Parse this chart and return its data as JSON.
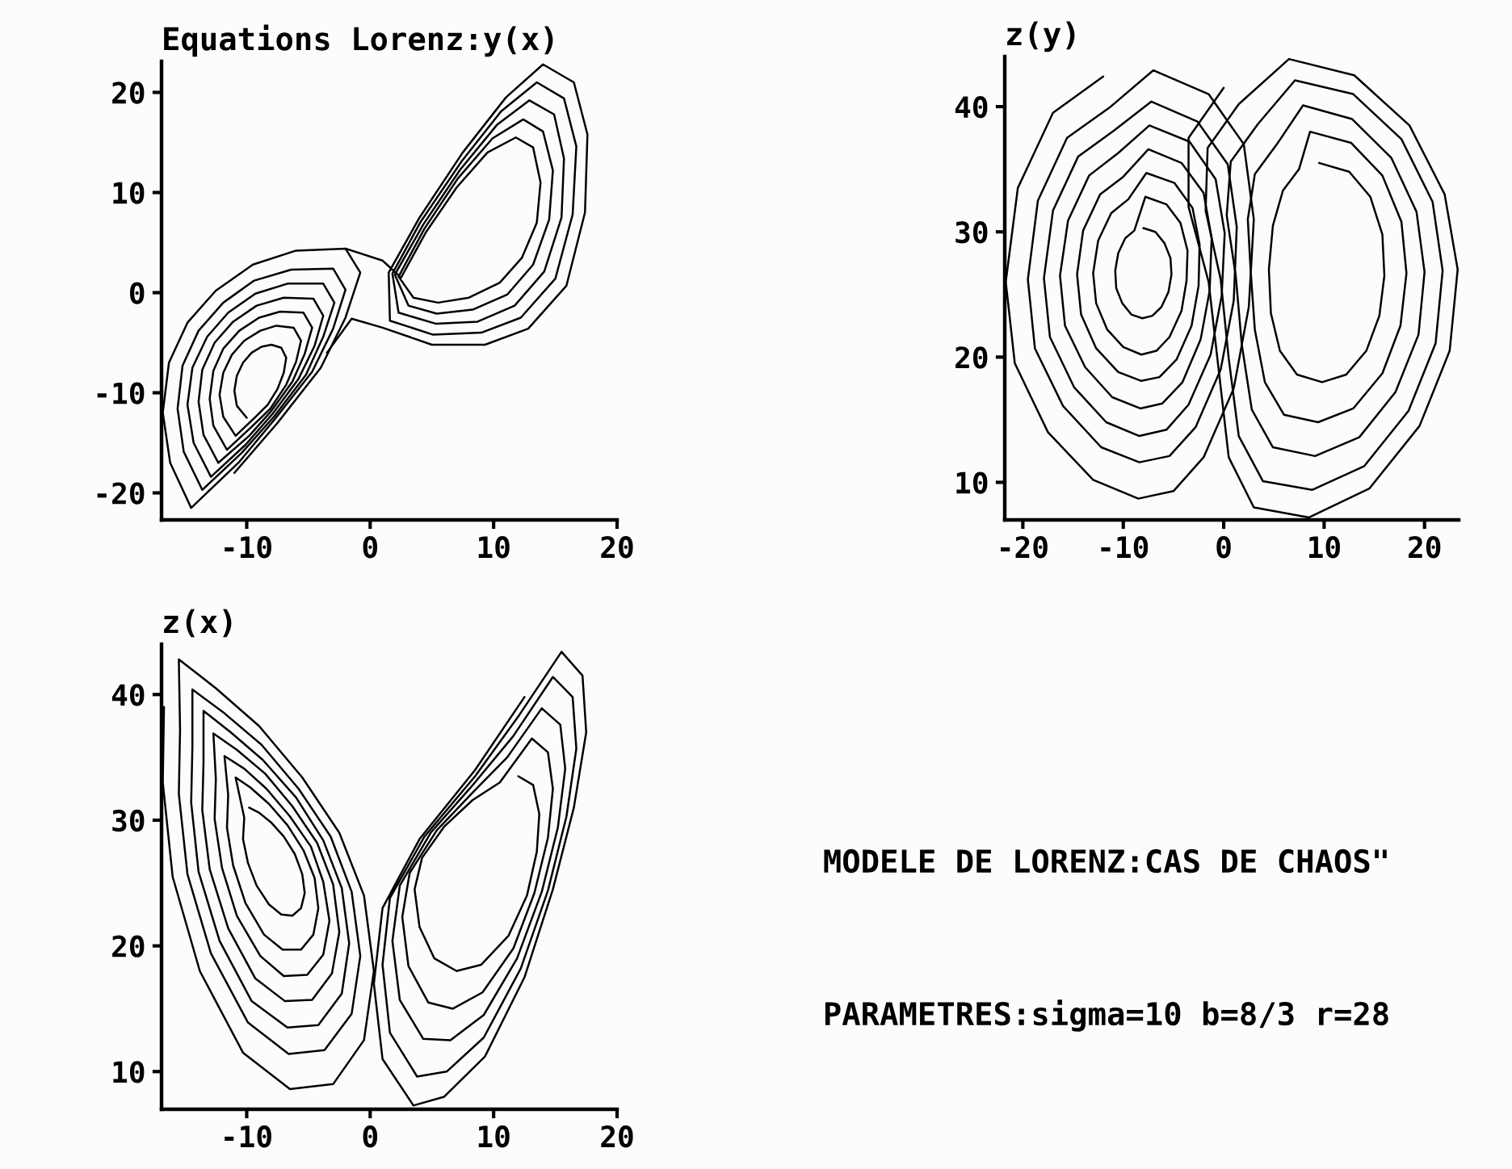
{
  "chart_data": [
    {
      "type": "line",
      "title": "Equations Lorenz:y(x)",
      "xlim": [
        -16.9,
        20
      ],
      "ylim": [
        -22.7,
        23.1
      ],
      "xticks": [
        -10,
        0,
        10,
        20
      ],
      "yticks": [
        -20,
        -10,
        0,
        10,
        20
      ],
      "series": [
        {
          "color": "#000000",
          "x": [
            -10.0,
            -10.8,
            -11.0,
            -10.8,
            -10.3,
            -9.6,
            -8.8,
            -8.0,
            -7.2,
            -6.8,
            -7.0,
            -7.5,
            -8.3,
            -9.2,
            -10.9,
            -11.9,
            -12.2,
            -11.9,
            -11.2,
            -10.2,
            -8.9,
            -7.6,
            -6.2,
            -5.6,
            -6.0,
            -6.8,
            -8.1,
            -9.6,
            -11.6,
            -12.7,
            -13.0,
            -12.7,
            -11.9,
            -10.6,
            -9.0,
            -7.3,
            -5.4,
            -4.7,
            -5.3,
            -6.3,
            -8.0,
            -9.8,
            -12.3,
            -13.5,
            -13.9,
            -13.6,
            -12.6,
            -11.1,
            -9.2,
            -7.0,
            -4.6,
            -3.8,
            -4.5,
            -5.8,
            -7.9,
            -10.1,
            -12.9,
            -14.3,
            -14.8,
            -14.4,
            -13.2,
            -11.5,
            -9.3,
            -6.7,
            -3.8,
            -2.9,
            -3.8,
            -5.2,
            -7.8,
            -10.4,
            -13.6,
            -15.1,
            -15.6,
            -15.2,
            -13.9,
            -11.9,
            -9.4,
            -6.4,
            -3.0,
            -2.0,
            -3.0,
            -4.7,
            -7.7,
            -10.6,
            -14.5,
            -16.2,
            -16.8,
            -16.3,
            -14.8,
            -12.5,
            -9.5,
            -6.0,
            -2.0,
            -0.8,
            -2.0,
            -4.0,
            -7.5,
            -11.0
          ],
          "values": [
            -12.5,
            -11.3,
            -9.8,
            -8.3,
            -7.0,
            -6.0,
            -5.4,
            -5.2,
            -5.5,
            -6.5,
            -8.0,
            -9.6,
            -11.2,
            -12.3,
            -14.3,
            -12.4,
            -10.2,
            -8.0,
            -6.2,
            -4.8,
            -3.8,
            -3.3,
            -3.5,
            -4.8,
            -6.9,
            -9.2,
            -11.6,
            -13.4,
            -15.7,
            -13.3,
            -10.6,
            -7.8,
            -5.6,
            -3.8,
            -2.5,
            -1.9,
            -2.0,
            -3.5,
            -6.1,
            -8.9,
            -11.8,
            -14.3,
            -17.0,
            -14.2,
            -10.9,
            -7.7,
            -5.0,
            -2.9,
            -1.3,
            -0.5,
            -0.6,
            -2.3,
            -5.3,
            -8.6,
            -12.1,
            -15.2,
            -18.4,
            -15.0,
            -11.2,
            -7.5,
            -4.4,
            -2.0,
            -0.1,
            0.9,
            0.9,
            -1.0,
            -4.4,
            -8.2,
            -12.4,
            -16.0,
            -19.7,
            -15.9,
            -11.6,
            -7.3,
            -3.8,
            -1.0,
            1.2,
            2.3,
            2.4,
            0.3,
            -3.6,
            -7.9,
            -12.6,
            -16.9,
            -21.5,
            -17.0,
            -12.0,
            -7.0,
            -3.0,
            0.2,
            2.8,
            4.2,
            4.4,
            2.0,
            -2.5,
            -7.5,
            -13.0,
            -18.0
          ]
        },
        {
          "color": "#000000",
          "x": [
            -2.0,
            1.0,
            2.5,
            4.5,
            7.0,
            9.5,
            11.8,
            13.2,
            13.8,
            13.5,
            12.3,
            10.5,
            8.0,
            5.5,
            3.5,
            2.3,
            4.4,
            7.1,
            9.9,
            12.4,
            14.0,
            14.8,
            14.5,
            13.2,
            11.1,
            8.3,
            5.4,
            3.1,
            2.0,
            4.3,
            7.3,
            10.3,
            12.9,
            14.9,
            15.7,
            15.5,
            14.1,
            11.7,
            8.7,
            5.3,
            2.3,
            1.8,
            4.1,
            7.4,
            10.6,
            13.5,
            15.7,
            16.7,
            16.4,
            15.0,
            12.2,
            9.0,
            5.1,
            1.6,
            1.5,
            4.0,
            7.5,
            11.0,
            14.0,
            16.5,
            17.6,
            17.4,
            15.9,
            12.8,
            9.3,
            5.0,
            1.0,
            -1.5,
            -3.5
          ],
          "values": [
            4.4,
            3.2,
            1.5,
            6.0,
            10.5,
            14.0,
            15.5,
            14.5,
            11.0,
            7.0,
            3.5,
            1.0,
            -0.5,
            -1.0,
            -0.5,
            1.6,
            6.4,
            11.4,
            15.4,
            17.3,
            16.1,
            12.2,
            7.3,
            2.8,
            -0.2,
            -1.7,
            -2.1,
            -1.3,
            1.8,
            6.8,
            12.3,
            16.8,
            19.2,
            17.8,
            13.4,
            7.5,
            2.1,
            -1.3,
            -2.9,
            -3.1,
            -2.0,
            1.9,
            7.1,
            13.1,
            18.1,
            21.0,
            19.4,
            14.6,
            7.8,
            1.4,
            -2.5,
            -4.0,
            -4.2,
            -2.8,
            2.0,
            7.5,
            14.0,
            19.5,
            22.8,
            21.0,
            15.8,
            8.0,
            0.7,
            -3.6,
            -5.2,
            -5.2,
            -3.5,
            -2.6,
            -6.0
          ]
        }
      ]
    },
    {
      "type": "line",
      "title": "z(y)",
      "xlim": [
        -21.8,
        23.4
      ],
      "ylim": [
        7.0,
        44.0
      ],
      "xticks": [
        -20,
        -10,
        0,
        10,
        20
      ],
      "yticks": [
        10,
        20,
        30,
        40
      ],
      "series": [
        {
          "color": "#000000",
          "x": [
            -8.0,
            -6.8,
            -5.9,
            -5.3,
            -5.2,
            -5.5,
            -6.2,
            -7.1,
            -8.1,
            -9.2,
            -10.1,
            -10.7,
            -10.8,
            -10.5,
            -9.8,
            -8.9,
            -7.8,
            -5.7,
            -4.3,
            -3.6,
            -3.7,
            -4.2,
            -5.4,
            -6.7,
            -8.2,
            -10.0,
            -11.6,
            -12.7,
            -13.0,
            -12.5,
            -11.2,
            -9.5,
            -7.7,
            -4.9,
            -3.1,
            -2.4,
            -2.5,
            -3.2,
            -4.7,
            -6.4,
            -8.2,
            -10.5,
            -12.7,
            -14.2,
            -14.6,
            -14.0,
            -12.3,
            -10.0,
            -7.5,
            -4.2,
            -2.0,
            -1.2,
            -1.4,
            -2.3,
            -4.1,
            -6.1,
            -8.3,
            -11.1,
            -13.8,
            -15.8,
            -16.3,
            -15.5,
            -13.4,
            -10.5,
            -7.4,
            -3.4,
            -0.8,
            0.1,
            -0.2,
            -1.3,
            -3.5,
            -5.7,
            -8.4,
            -11.7,
            -14.9,
            -17.3,
            -17.9,
            -17.0,
            -14.5,
            -10.9,
            -7.2,
            -2.6,
            0.4,
            1.3,
            1.0,
            -0.3,
            -2.8,
            -5.4,
            -8.4,
            -12.2,
            -16.0,
            -18.8,
            -19.5,
            -18.5,
            -15.6,
            -11.4,
            -7.0,
            -1.5,
            2.0,
            3.0,
            2.5,
            1.0,
            -2.0,
            -5.0,
            -8.5,
            -13.0,
            -17.5,
            -20.8,
            -21.7,
            -20.5,
            -17.0,
            -12.0
          ],
          "values": [
            30.3,
            30.0,
            29.1,
            27.9,
            26.6,
            25.2,
            24.0,
            23.3,
            23.1,
            23.4,
            24.3,
            25.5,
            26.9,
            28.3,
            29.5,
            30.1,
            32.8,
            32.2,
            30.7,
            28.5,
            26.1,
            23.7,
            21.6,
            20.5,
            20.2,
            20.8,
            22.2,
            24.3,
            26.7,
            29.3,
            31.5,
            32.6,
            34.7,
            33.9,
            31.9,
            29.0,
            25.7,
            22.5,
            19.8,
            18.4,
            18.1,
            18.8,
            20.7,
            23.4,
            26.6,
            30.1,
            33.0,
            34.4,
            36.6,
            35.5,
            33.1,
            29.5,
            25.3,
            21.4,
            18.0,
            16.3,
            15.9,
            16.8,
            19.2,
            22.5,
            26.5,
            30.9,
            34.5,
            36.3,
            38.5,
            37.2,
            34.2,
            29.9,
            24.9,
            20.2,
            16.2,
            14.2,
            13.7,
            14.8,
            17.6,
            21.6,
            26.3,
            31.7,
            36.0,
            38.1,
            40.4,
            38.8,
            35.4,
            30.4,
            24.5,
            19.0,
            14.4,
            12.1,
            11.6,
            12.8,
            16.1,
            20.7,
            26.2,
            32.5,
            37.5,
            39.9,
            42.9,
            41.0,
            37.0,
            31.0,
            24.0,
            17.5,
            12.0,
            9.3,
            8.7,
            10.2,
            14.0,
            19.5,
            26.0,
            33.5,
            39.5,
            42.4
          ]
        },
        {
          "color": "#000000",
          "x": [
            9.5,
            12.5,
            14.6,
            15.8,
            16.0,
            15.5,
            14.2,
            12.2,
            9.8,
            7.3,
            5.6,
            4.7,
            4.5,
            4.9,
            5.9,
            7.5,
            8.6,
            12.7,
            15.8,
            17.7,
            18.2,
            17.6,
            15.8,
            12.9,
            9.4,
            6.0,
            4.1,
            3.1,
            2.7,
            2.4,
            3.1,
            5.3,
            7.9,
            12.8,
            16.7,
            19.2,
            20.0,
            19.4,
            17.1,
            13.5,
            9.1,
            4.9,
            2.8,
            1.8,
            1.2,
            0.3,
            0.7,
            3.4,
            7.1,
            12.9,
            17.7,
            20.8,
            21.8,
            21.1,
            18.4,
            14.0,
            8.8,
            3.9,
            1.5,
            0.5,
            -0.3,
            -1.8,
            -1.6,
            1.5,
            6.5,
            13.0,
            18.5,
            22.0,
            23.3,
            22.5,
            19.5,
            14.5,
            8.5,
            3.0,
            0.5,
            -0.5,
            -1.5,
            -3.5,
            -3.5,
            0.0
          ],
          "values": [
            35.5,
            34.8,
            32.8,
            29.8,
            26.5,
            23.3,
            20.5,
            18.6,
            18.0,
            18.6,
            20.5,
            23.5,
            27.0,
            30.5,
            33.3,
            35.0,
            38.0,
            37.1,
            34.5,
            30.8,
            26.7,
            22.5,
            18.7,
            15.9,
            14.8,
            15.4,
            18.0,
            22.2,
            26.7,
            31.0,
            34.6,
            37.0,
            40.1,
            39.0,
            35.9,
            31.6,
            26.8,
            21.8,
            17.2,
            13.6,
            12.1,
            12.8,
            15.8,
            21.0,
            26.5,
            31.3,
            35.6,
            38.6,
            42.1,
            41.0,
            37.4,
            32.4,
            26.9,
            21.1,
            15.7,
            11.3,
            9.4,
            10.1,
            13.7,
            19.9,
            26.2,
            31.7,
            36.7,
            40.2,
            43.8,
            42.5,
            38.5,
            33.0,
            27.0,
            20.5,
            14.5,
            9.5,
            7.2,
            8.0,
            12.0,
            19.0,
            26.0,
            32.0,
            37.5,
            41.5
          ]
        }
      ]
    },
    {
      "type": "line",
      "title": "z(x)",
      "xlim": [
        -16.9,
        20
      ],
      "ylim": [
        7.0,
        44.0
      ],
      "xticks": [
        -10,
        0,
        10,
        20
      ],
      "yticks": [
        10,
        20,
        30,
        40
      ],
      "series": [
        {
          "color": "#000000",
          "x": [
            -9.8,
            -9.0,
            -8.0,
            -7.0,
            -6.1,
            -5.5,
            -5.3,
            -5.6,
            -6.3,
            -7.2,
            -8.2,
            -9.2,
            -9.9,
            -10.3,
            -10.2,
            -10.9,
            -9.7,
            -8.2,
            -6.7,
            -5.4,
            -4.5,
            -4.2,
            -4.6,
            -5.6,
            -7.1,
            -8.6,
            -10.1,
            -11.1,
            -11.6,
            -11.5,
            -11.8,
            -10.2,
            -8.4,
            -6.5,
            -4.8,
            -3.8,
            -3.3,
            -3.8,
            -5.1,
            -7.0,
            -8.9,
            -10.8,
            -12.0,
            -12.6,
            -12.5,
            -12.7,
            -10.8,
            -8.5,
            -6.3,
            -4.3,
            -3.0,
            -2.5,
            -3.1,
            -4.7,
            -6.9,
            -9.3,
            -11.5,
            -13.0,
            -13.6,
            -13.5,
            -13.5,
            -11.3,
            -8.7,
            -6.0,
            -3.8,
            -2.3,
            -1.7,
            -2.3,
            -4.2,
            -6.7,
            -9.6,
            -12.2,
            -13.9,
            -14.5,
            -14.4,
            -14.4,
            -11.8,
            -8.8,
            -5.8,
            -3.2,
            -1.5,
            -0.8,
            -1.5,
            -3.7,
            -6.6,
            -9.9,
            -12.9,
            -14.8,
            -15.5,
            -15.4,
            -15.5,
            -12.5,
            -9.0,
            -5.5,
            -2.5,
            -0.5,
            0.3,
            -0.5,
            -3.0,
            -6.5,
            -10.3,
            -13.8,
            -16.0,
            -16.8,
            -16.7
          ],
          "values": [
            31.0,
            30.6,
            29.8,
            28.7,
            27.3,
            25.7,
            24.2,
            23.0,
            22.4,
            22.5,
            23.3,
            24.8,
            26.6,
            28.5,
            30.2,
            33.4,
            32.6,
            31.3,
            29.6,
            27.6,
            25.4,
            23.0,
            20.9,
            19.7,
            19.7,
            20.9,
            23.4,
            26.4,
            29.4,
            32.0,
            35.1,
            34.1,
            32.5,
            30.3,
            27.9,
            25.1,
            22.0,
            19.3,
            17.7,
            17.6,
            19.2,
            22.4,
            26.2,
            30.1,
            33.3,
            36.9,
            35.6,
            33.7,
            31.1,
            28.2,
            24.9,
            21.1,
            17.8,
            15.7,
            15.6,
            17.4,
            21.4,
            26.1,
            30.8,
            34.6,
            38.7,
            37.0,
            34.8,
            31.8,
            28.4,
            24.6,
            20.2,
            16.2,
            13.7,
            13.5,
            15.6,
            20.4,
            25.9,
            31.4,
            35.9,
            40.4,
            38.5,
            36.0,
            32.5,
            28.7,
            24.3,
            19.2,
            14.6,
            11.7,
            11.4,
            13.9,
            19.4,
            25.7,
            32.1,
            37.2,
            42.8,
            40.5,
            37.5,
            33.4,
            29.0,
            24.0,
            18.0,
            12.5,
            9.0,
            8.6,
            11.5,
            18.0,
            25.5,
            33.0,
            39.0
          ]
        },
        {
          "color": "#000000",
          "x": [
            12.0,
            13.2,
            13.7,
            13.5,
            12.7,
            11.2,
            9.0,
            7.0,
            5.2,
            4.0,
            3.6,
            4.2,
            6.0,
            8.3,
            10.5,
            13.1,
            14.4,
            14.8,
            14.4,
            13.3,
            11.6,
            9.1,
            6.7,
            4.7,
            3.1,
            2.6,
            3.2,
            5.4,
            8.4,
            11.1,
            13.9,
            15.4,
            15.8,
            15.2,
            13.9,
            11.9,
            9.2,
            6.5,
            4.3,
            2.4,
            1.8,
            2.4,
            4.9,
            8.4,
            11.6,
            14.8,
            16.4,
            16.7,
            15.9,
            14.4,
            12.2,
            9.2,
            6.2,
            3.8,
            1.6,
            1.0,
            1.6,
            4.4,
            8.5,
            12.1,
            15.5,
            17.2,
            17.5,
            16.5,
            14.8,
            12.5,
            9.3,
            6.0,
            3.5,
            1.0,
            0.3,
            1.0,
            4.0,
            8.5,
            12.5
          ],
          "values": [
            33.5,
            32.8,
            30.5,
            27.5,
            24.0,
            20.8,
            18.5,
            18.0,
            19.0,
            21.5,
            24.5,
            27.0,
            29.5,
            31.6,
            33.0,
            36.5,
            35.4,
            32.5,
            28.6,
            24.2,
            19.8,
            16.3,
            15.0,
            15.5,
            18.4,
            22.3,
            25.8,
            29.2,
            32.3,
            35.0,
            38.9,
            37.6,
            34.1,
            29.4,
            24.3,
            19.0,
            14.5,
            12.5,
            12.6,
            15.7,
            20.4,
            24.8,
            29.0,
            32.9,
            36.7,
            41.4,
            39.8,
            35.7,
            30.3,
            24.4,
            18.2,
            12.7,
            10.0,
            9.6,
            13.1,
            18.5,
            23.8,
            28.7,
            33.5,
            38.4,
            43.4,
            41.5,
            37.0,
            31.0,
            24.5,
            17.5,
            11.2,
            8.0,
            7.3,
            11.0,
            17.0,
            23.0,
            28.5,
            34.0,
            39.8
          ]
        }
      ]
    },
    {
      "type": "other",
      "annotations": [
        "MODELE DE LORENZ:CAS DE CHAOS\"",
        "PARAMETRES:sigma=10 b=8/3 r=28"
      ]
    }
  ]
}
